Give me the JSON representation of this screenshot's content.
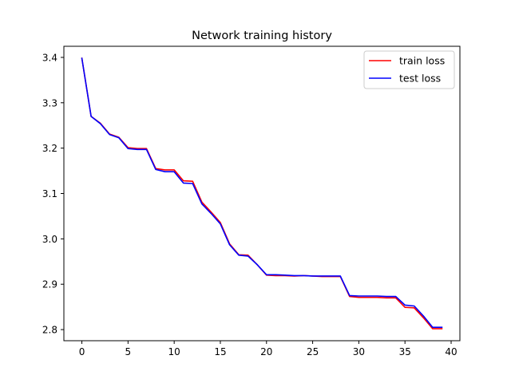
{
  "chart_data": {
    "type": "line",
    "title": "Network training history",
    "xlabel": "",
    "ylabel": "",
    "xlim": [
      -1.95,
      40.95
    ],
    "ylim": [
      2.7755,
      3.4245
    ],
    "xticks": [
      0,
      5,
      10,
      15,
      20,
      25,
      30,
      35,
      40
    ],
    "xtick_labels": [
      "0",
      "5",
      "10",
      "15",
      "20",
      "25",
      "30",
      "35",
      "40"
    ],
    "yticks": [
      2.8,
      2.9,
      3.0,
      3.1,
      3.2,
      3.3,
      3.4
    ],
    "ytick_labels": [
      "2.8",
      "2.9",
      "3.0",
      "3.1",
      "3.2",
      "3.3",
      "3.4"
    ],
    "grid": false,
    "legend_position": "upper right",
    "x": [
      0,
      1,
      2,
      3,
      4,
      5,
      6,
      7,
      8,
      9,
      10,
      11,
      12,
      13,
      14,
      15,
      16,
      17,
      18,
      19,
      20,
      21,
      22,
      23,
      24,
      25,
      26,
      27,
      28,
      29,
      30,
      31,
      32,
      33,
      34,
      35,
      36,
      37,
      38,
      39
    ],
    "series": [
      {
        "name": "train loss",
        "color": "#ff0000",
        "values": [
          3.398,
          3.27,
          3.255,
          3.231,
          3.224,
          3.201,
          3.199,
          3.199,
          3.155,
          3.152,
          3.152,
          3.128,
          3.127,
          3.081,
          3.059,
          3.036,
          2.989,
          2.965,
          2.964,
          2.943,
          2.92,
          2.919,
          2.919,
          2.918,
          2.919,
          2.918,
          2.917,
          2.917,
          2.917,
          2.873,
          2.871,
          2.871,
          2.871,
          2.87,
          2.87,
          2.849,
          2.848,
          2.826,
          2.802,
          2.802
        ]
      },
      {
        "name": "test loss",
        "color": "#0000ff",
        "values": [
          3.398,
          3.27,
          3.254,
          3.23,
          3.223,
          3.199,
          3.197,
          3.197,
          3.153,
          3.148,
          3.148,
          3.123,
          3.122,
          3.077,
          3.056,
          3.033,
          2.987,
          2.964,
          2.962,
          2.943,
          2.921,
          2.921,
          2.92,
          2.919,
          2.919,
          2.918,
          2.918,
          2.918,
          2.918,
          2.875,
          2.874,
          2.874,
          2.874,
          2.873,
          2.873,
          2.854,
          2.852,
          2.83,
          2.805,
          2.805
        ]
      }
    ]
  }
}
